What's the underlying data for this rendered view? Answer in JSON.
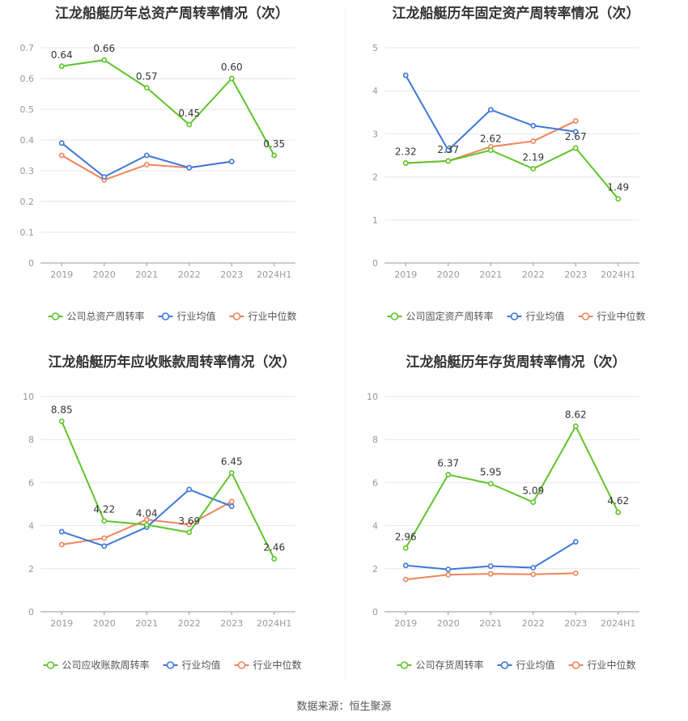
{
  "colors": {
    "company": "#5ec42a",
    "avg": "#3d78d8",
    "median": "#f0845c",
    "grid": "#e6e6e6",
    "axis": "#999999"
  },
  "source": "数据来源：恒生聚源",
  "chart_data": [
    {
      "type": "line",
      "title": "江龙船艇历年总资产周转率情况（次）",
      "categories": [
        "2019",
        "2020",
        "2021",
        "2022",
        "2023",
        "2024H1"
      ],
      "ylim": [
        0,
        0.7
      ],
      "yticks": [
        "0",
        "0.1",
        "0.2",
        "0.3",
        "0.4",
        "0.5",
        "0.6",
        "0.7"
      ],
      "series": [
        {
          "name": "公司总资产周转率",
          "values": [
            0.64,
            0.66,
            0.57,
            0.45,
            0.6,
            0.35
          ],
          "labels": [
            "0.64",
            "0.66",
            "0.57",
            "0.45",
            "0.60",
            "0.35"
          ]
        },
        {
          "name": "行业均值",
          "values": [
            0.39,
            0.28,
            0.35,
            0.31,
            0.33,
            null
          ]
        },
        {
          "name": "行业中位数",
          "values": [
            0.35,
            0.27,
            0.32,
            0.31,
            0.33,
            null
          ]
        }
      ]
    },
    {
      "type": "line",
      "title": "江龙船艇历年固定资产周转率情况（次）",
      "categories": [
        "2019",
        "2020",
        "2021",
        "2022",
        "2023",
        "2024H1"
      ],
      "ylim": [
        0,
        5
      ],
      "yticks": [
        "0",
        "1",
        "2",
        "3",
        "4",
        "5"
      ],
      "series": [
        {
          "name": "公司固定资产周转率",
          "values": [
            2.32,
            2.37,
            2.62,
            2.19,
            2.67,
            1.49
          ],
          "labels": [
            "2.32",
            "2.37",
            "2.62",
            "2.19",
            "2.67",
            "1.49"
          ]
        },
        {
          "name": "行业均值",
          "values": [
            4.36,
            2.62,
            3.56,
            3.19,
            3.05,
            null
          ]
        },
        {
          "name": "行业中位数",
          "values": [
            2.32,
            2.37,
            2.7,
            2.83,
            3.3,
            null
          ]
        }
      ]
    },
    {
      "type": "line",
      "title": "江龙船艇历年应收账款周转率情况（次）",
      "categories": [
        "2019",
        "2020",
        "2021",
        "2022",
        "2023",
        "2024H1"
      ],
      "ylim": [
        0,
        10
      ],
      "yticks": [
        "0",
        "2",
        "4",
        "6",
        "8",
        "10"
      ],
      "series": [
        {
          "name": "公司应收账款周转率",
          "values": [
            8.85,
            4.22,
            4.04,
            3.69,
            6.45,
            2.46
          ],
          "labels": [
            "8.85",
            "4.22",
            "4.04",
            "3.69",
            "6.45",
            "2.46"
          ]
        },
        {
          "name": "行业均值",
          "values": [
            3.72,
            3.05,
            3.93,
            5.68,
            4.9,
            null
          ]
        },
        {
          "name": "行业中位数",
          "values": [
            3.12,
            3.42,
            4.28,
            4.05,
            5.12,
            null
          ]
        }
      ]
    },
    {
      "type": "line",
      "title": "江龙船艇历年存货周转率情况（次）",
      "categories": [
        "2019",
        "2020",
        "2021",
        "2022",
        "2023",
        "2024H1"
      ],
      "ylim": [
        0,
        10
      ],
      "yticks": [
        "0",
        "2",
        "4",
        "6",
        "8",
        "10"
      ],
      "series": [
        {
          "name": "公司存货周转率",
          "values": [
            2.96,
            6.37,
            5.95,
            5.09,
            8.62,
            4.62
          ],
          "labels": [
            "2.96",
            "6.37",
            "5.95",
            "5.09",
            "8.62",
            "4.62"
          ]
        },
        {
          "name": "行业均值",
          "values": [
            2.15,
            1.97,
            2.12,
            2.05,
            3.25,
            null
          ]
        },
        {
          "name": "行业中位数",
          "values": [
            1.5,
            1.72,
            1.76,
            1.74,
            1.79,
            null
          ]
        }
      ]
    }
  ]
}
